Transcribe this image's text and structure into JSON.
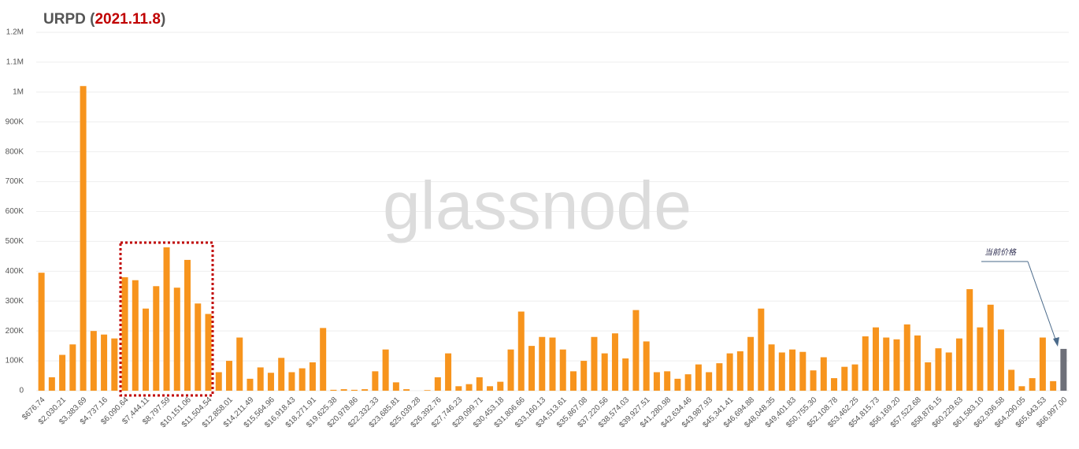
{
  "chart_data": {
    "type": "bar",
    "title": [
      "URPD (",
      "2021.11.8",
      ")"
    ],
    "watermark": "glassnode",
    "annotation": "当前价格",
    "categories": [
      "$676.74",
      null,
      "$2,030.21",
      null,
      "$3,383.69",
      null,
      "$4,737.16",
      null,
      "$6,090.64",
      null,
      "$7,444.11",
      null,
      "$8,797.59",
      null,
      "$10,151.06",
      null,
      "$11,504.54",
      null,
      "$12,858.01",
      null,
      "$14,211.49",
      null,
      "$15,564.96",
      null,
      "$16,918.43",
      null,
      "$18,271.91",
      null,
      "$19,625.38",
      null,
      "$20,978.86",
      null,
      "$22,332.33",
      null,
      "$23,685.81",
      null,
      "$25,039.28",
      null,
      "$26,392.76",
      null,
      "$27,746.23",
      null,
      "$29,099.71",
      null,
      "$30,453.18",
      null,
      "$31,806.66",
      null,
      "$33,160.13",
      null,
      "$34,513.61",
      null,
      "$35,867.08",
      null,
      "$37,220.56",
      null,
      "$38,574.03",
      null,
      "$39,927.51",
      null,
      "$41,280.98",
      null,
      "$42,634.46",
      null,
      "$43,987.93",
      null,
      "$45,341.41",
      null,
      "$46,694.88",
      null,
      "$48,048.35",
      null,
      "$49,401.83",
      null,
      "$50,755.30",
      null,
      "$52,108.78",
      null,
      "$53,462.25",
      null,
      "$54,815.73",
      null,
      "$56,169.20",
      null,
      "$57,522.68",
      null,
      "$58,876.15",
      null,
      "$60,229.63",
      null,
      "$61,583.10",
      null,
      "$62,936.58",
      null,
      "$64,290.05",
      null,
      "$65,643.53",
      null,
      "$66,997.00"
    ],
    "values": [
      395000,
      45000,
      120000,
      155000,
      1020000,
      200000,
      188000,
      175000,
      380000,
      370000,
      275000,
      350000,
      480000,
      345000,
      438000,
      292000,
      257000,
      62000,
      100000,
      178000,
      40000,
      78000,
      60000,
      110000,
      62000,
      75000,
      95000,
      210000,
      3000,
      5000,
      3000,
      5000,
      65000,
      138000,
      28000,
      5000,
      0,
      2000,
      45000,
      125000,
      15000,
      22000,
      45000,
      15000,
      30000,
      138000,
      265000,
      150000,
      180000,
      178000,
      138000,
      65000,
      100000,
      180000,
      125000,
      192000,
      108000,
      270000,
      165000,
      62000,
      65000,
      40000,
      55000,
      88000,
      62000,
      92000,
      125000,
      132000,
      180000,
      275000,
      155000,
      128000,
      138000,
      130000,
      68000,
      112000,
      42000,
      80000,
      88000,
      182000,
      212000,
      178000,
      172000,
      222000,
      185000,
      95000,
      142000,
      128000,
      175000,
      340000,
      212000,
      288000,
      205000,
      70000,
      15000,
      42000,
      178000,
      32000,
      140000
    ],
    "colors": [
      "#f7941d",
      "#f7941d",
      "#f7941d",
      "#f7941d",
      "#f7941d",
      "#f7941d",
      "#f7941d",
      "#f7941d",
      "#f7941d",
      "#f7941d",
      "#f7941d",
      "#f7941d",
      "#f7941d",
      "#f7941d",
      "#f7941d",
      "#f7941d",
      "#f7941d",
      "#f7941d",
      "#f7941d",
      "#f7941d",
      "#f7941d",
      "#f7941d",
      "#f7941d",
      "#f7941d",
      "#f7941d",
      "#f7941d",
      "#f7941d",
      "#f7941d",
      "#f7941d",
      "#f7941d",
      "#f7941d",
      "#f7941d",
      "#f7941d",
      "#f7941d",
      "#f7941d",
      "#f7941d",
      "#f7941d",
      "#f7941d",
      "#f7941d",
      "#f7941d",
      "#f7941d",
      "#f7941d",
      "#f7941d",
      "#f7941d",
      "#f7941d",
      "#f7941d",
      "#f7941d",
      "#f7941d",
      "#f7941d",
      "#f7941d",
      "#f7941d",
      "#f7941d",
      "#f7941d",
      "#f7941d",
      "#f7941d",
      "#f7941d",
      "#f7941d",
      "#f7941d",
      "#f7941d",
      "#f7941d",
      "#f7941d",
      "#f7941d",
      "#f7941d",
      "#f7941d",
      "#f7941d",
      "#f7941d",
      "#f7941d",
      "#f7941d",
      "#f7941d",
      "#f7941d",
      "#f7941d",
      "#f7941d",
      "#f7941d",
      "#f7941d",
      "#f7941d",
      "#f7941d",
      "#f7941d",
      "#f7941d",
      "#f7941d",
      "#f7941d",
      "#f7941d",
      "#f7941d",
      "#f7941d",
      "#f7941d",
      "#f7941d",
      "#f7941d",
      "#f7941d",
      "#f7941d",
      "#f7941d",
      "#f7941d",
      "#f7941d",
      "#f7941d",
      "#f7941d",
      "#f7941d",
      "#f7941d",
      "#f7941d",
      "#f7941d",
      "#f7941d",
      "#6e7079"
    ],
    "ylim": [
      0,
      1200000
    ],
    "yticks": [
      0,
      {
        "value": 100000,
        "label": "100K"
      },
      {
        "value": 200000,
        "label": "200K"
      },
      {
        "value": 300000,
        "label": "300K"
      },
      {
        "value": 400000,
        "label": "400K"
      },
      {
        "value": 500000,
        "label": "500K"
      },
      {
        "value": 600000,
        "label": "600K"
      },
      {
        "value": 700000,
        "label": "700K"
      },
      {
        "value": 800000,
        "label": "800K"
      },
      {
        "value": 900000,
        "label": "900K"
      },
      {
        "value": 1000000,
        "label": "1M"
      },
      {
        "value": 1100000,
        "label": "1.1M"
      },
      {
        "value": 1200000,
        "label": "1.2M"
      }
    ],
    "grid": true
  }
}
